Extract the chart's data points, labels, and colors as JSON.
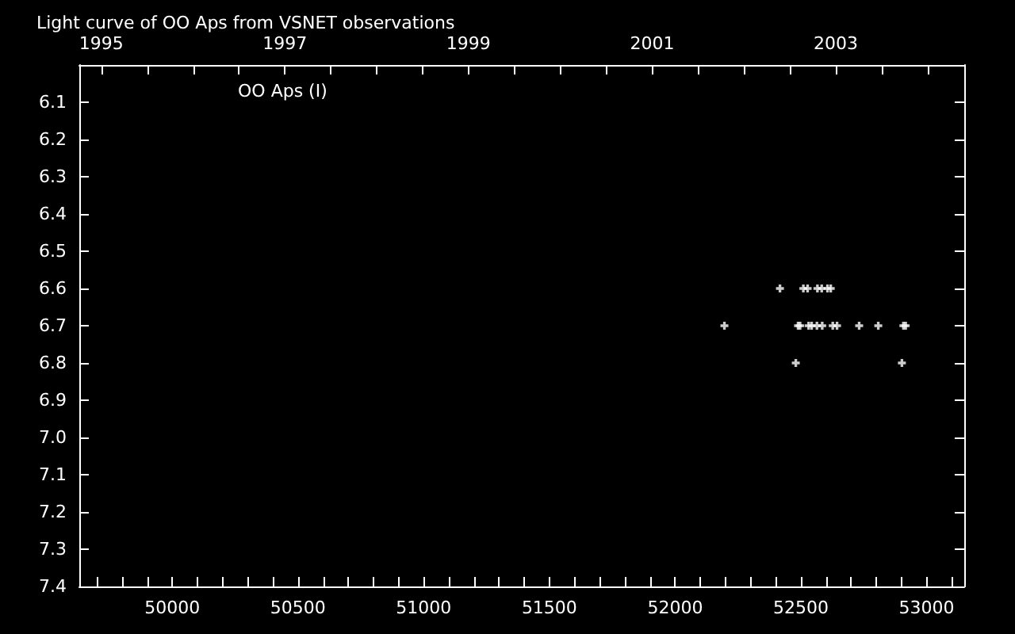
{
  "chart_data": {
    "type": "scatter",
    "title": "Light curve of OO Aps from VSNET observations",
    "annotations": [
      "OO Aps (I)"
    ],
    "x": [
      52417,
      52510,
      52527,
      52566,
      52583,
      52606,
      52619,
      52196,
      52489,
      52497,
      52531,
      52543,
      52564,
      52585,
      52627,
      52644,
      52732,
      52808,
      52908,
      52917,
      52480,
      52902
    ],
    "values": [
      6.6,
      6.6,
      6.6,
      6.6,
      6.6,
      6.6,
      6.6,
      6.7,
      6.7,
      6.7,
      6.7,
      6.7,
      6.7,
      6.7,
      6.7,
      6.7,
      6.7,
      6.7,
      6.7,
      6.7,
      6.8,
      6.8
    ],
    "color": "#ffffff",
    "marker": "cross",
    "grid": false,
    "xlim": [
      49630,
      53150
    ],
    "xticks": [
      {
        "value": 49700,
        "label": null
      },
      {
        "value": 49800,
        "label": null
      },
      {
        "value": 49900,
        "label": null
      },
      50000,
      {
        "value": 50100,
        "label": null
      },
      {
        "value": 50200,
        "label": null
      },
      {
        "value": 50300,
        "label": null
      },
      {
        "value": 50400,
        "label": null
      },
      50500,
      {
        "value": 50600,
        "label": null
      },
      {
        "value": 50700,
        "label": null
      },
      {
        "value": 50800,
        "label": null
      },
      {
        "value": 50900,
        "label": null
      },
      51000,
      {
        "value": 51100,
        "label": null
      },
      {
        "value": 51200,
        "label": null
      },
      {
        "value": 51300,
        "label": null
      },
      {
        "value": 51400,
        "label": null
      },
      51500,
      {
        "value": 51600,
        "label": null
      },
      {
        "value": 51700,
        "label": null
      },
      {
        "value": 51800,
        "label": null
      },
      {
        "value": 51900,
        "label": null
      },
      52000,
      {
        "value": 52100,
        "label": null
      },
      {
        "value": 52200,
        "label": null
      },
      {
        "value": 52300,
        "label": null
      },
      {
        "value": 52400,
        "label": null
      },
      52500,
      {
        "value": 52600,
        "label": null
      },
      {
        "value": 52700,
        "label": null
      },
      {
        "value": 52800,
        "label": null
      },
      {
        "value": 52900,
        "label": null
      },
      53000,
      {
        "value": 53100,
        "label": null
      }
    ],
    "x2lim": [
      1994.76,
      2004.4
    ],
    "x2ticks": [
      1995,
      {
        "value": 1995.5,
        "label": null
      },
      {
        "value": 1996,
        "label": null
      },
      {
        "value": 1996.5,
        "label": null
      },
      1997,
      {
        "value": 1997.5,
        "label": null
      },
      {
        "value": 1998,
        "label": null
      },
      {
        "value": 1998.5,
        "label": null
      },
      1999,
      {
        "value": 1999.5,
        "label": null
      },
      {
        "value": 2000,
        "label": null
      },
      {
        "value": 2000.5,
        "label": null
      },
      2001,
      {
        "value": 2001.5,
        "label": null
      },
      {
        "value": 2002,
        "label": null
      },
      {
        "value": 2002.5,
        "label": null
      },
      2003,
      {
        "value": 2003.5,
        "label": null
      },
      {
        "value": 2004,
        "label": null
      }
    ],
    "ylim": [
      7.4,
      6.0
    ],
    "yticks": [
      6.1,
      6.2,
      6.3,
      6.4,
      6.5,
      6.6,
      6.7,
      6.8,
      6.9,
      {
        "value": 7.0,
        "label": "7.0"
      },
      7.1,
      7.2,
      7.3,
      7.4
    ]
  }
}
